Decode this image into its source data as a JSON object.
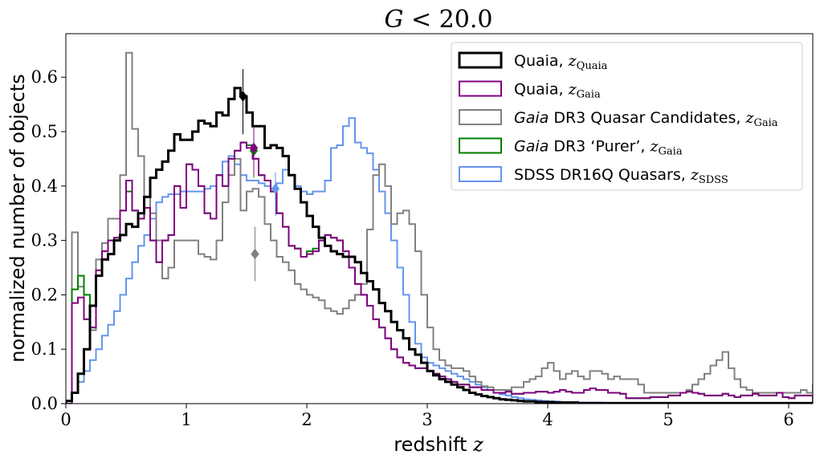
{
  "chart_data": {
    "type": "histogram-step",
    "title": "G < 20.0",
    "xlabel": "redshift z",
    "ylabel": "normalized number of objects",
    "xlim": [
      0,
      6.2
    ],
    "ylim": [
      0,
      0.68
    ],
    "xticks": [
      0,
      1,
      2,
      3,
      4,
      5,
      6
    ],
    "xtick_labels": [
      "0",
      "1",
      "2",
      "3",
      "4",
      "5",
      "6"
    ],
    "yticks": [
      0.0,
      0.1,
      0.2,
      0.3,
      0.4,
      0.5,
      0.6
    ],
    "ytick_labels": [
      "0.0",
      "0.1",
      "0.2",
      "0.3",
      "0.4",
      "0.5",
      "0.6"
    ],
    "grid": false,
    "legend_position": "top-right",
    "bin_width": 0.05,
    "series": [
      {
        "name": "Quaia, z_Quaia",
        "legend_parts": [
          "Quaia, ",
          "z",
          "Quaia"
        ],
        "color": "#000000",
        "linewidth": 3,
        "x_start": 0.0,
        "values": [
          0.005,
          0.02,
          0.055,
          0.1,
          0.18,
          0.235,
          0.265,
          0.275,
          0.3,
          0.31,
          0.33,
          0.325,
          0.35,
          0.38,
          0.415,
          0.43,
          0.445,
          0.465,
          0.495,
          0.485,
          0.485,
          0.5,
          0.52,
          0.515,
          0.51,
          0.535,
          0.53,
          0.56,
          0.58,
          0.565,
          0.535,
          0.51,
          0.51,
          0.47,
          0.475,
          0.47,
          0.455,
          0.42,
          0.395,
          0.37,
          0.345,
          0.325,
          0.305,
          0.29,
          0.28,
          0.275,
          0.27,
          0.27,
          0.26,
          0.24,
          0.225,
          0.21,
          0.185,
          0.17,
          0.15,
          0.135,
          0.12,
          0.1,
          0.09,
          0.075,
          0.06,
          0.052,
          0.045,
          0.04,
          0.035,
          0.03,
          0.025,
          0.02,
          0.017,
          0.014,
          0.012,
          0.01,
          0.008,
          0.007,
          0.006,
          0.005,
          0.004,
          0.004,
          0.003,
          0.003,
          0.003,
          0.002,
          0.002,
          0.002,
          0.002,
          0.001,
          0.001,
          0.001,
          0.001,
          0.001,
          0.001,
          0.001,
          0.001,
          0.001,
          0.001,
          0.001,
          0.001,
          0.001,
          0.001,
          0.001,
          0.001,
          0.001,
          0.001,
          0.001,
          0.001,
          0.001,
          0.001,
          0.001,
          0.001,
          0.001,
          0.001,
          0.001,
          0.001,
          0.001,
          0.001,
          0.001,
          0.001,
          0.001,
          0.001,
          0.001,
          0.001,
          0.001,
          0.001,
          0.001
        ],
        "marker": {
          "x": 1.47,
          "y": 0.565,
          "err_low": 0.07,
          "err_high": 0.05,
          "shape": "diamond"
        }
      },
      {
        "name": "Quaia, z_Gaia",
        "legend_parts": [
          "Quaia, ",
          "z",
          "Gaia"
        ],
        "color": "#800080",
        "linewidth": 2,
        "x_start": 0.0,
        "values": [
          0.0,
          0.185,
          0.195,
          0.155,
          0.14,
          0.245,
          0.28,
          0.3,
          0.305,
          0.355,
          0.41,
          0.355,
          0.34,
          0.36,
          0.3,
          0.26,
          0.3,
          0.31,
          0.4,
          0.36,
          0.44,
          0.43,
          0.4,
          0.35,
          0.34,
          0.42,
          0.4,
          0.45,
          0.465,
          0.48,
          0.47,
          0.45,
          0.42,
          0.41,
          0.39,
          0.35,
          0.325,
          0.29,
          0.285,
          0.27,
          0.275,
          0.28,
          0.3,
          0.31,
          0.305,
          0.3,
          0.28,
          0.25,
          0.22,
          0.2,
          0.18,
          0.155,
          0.14,
          0.12,
          0.1,
          0.085,
          0.075,
          0.07,
          0.065,
          0.065,
          0.06,
          0.055,
          0.05,
          0.045,
          0.04,
          0.035,
          0.035,
          0.03,
          0.03,
          0.025,
          0.025,
          0.02,
          0.02,
          0.022,
          0.018,
          0.018,
          0.02,
          0.02,
          0.022,
          0.022,
          0.02,
          0.022,
          0.025,
          0.022,
          0.02,
          0.02,
          0.025,
          0.028,
          0.025,
          0.025,
          0.02,
          0.02,
          0.018,
          0.01,
          0.01,
          0.01,
          0.01,
          0.012,
          0.012,
          0.012,
          0.015,
          0.015,
          0.02,
          0.022,
          0.02,
          0.018,
          0.015,
          0.015,
          0.015,
          0.018,
          0.015,
          0.012,
          0.015,
          0.015,
          0.018,
          0.015,
          0.015,
          0.015,
          0.02,
          0.012,
          0.01,
          0.015,
          0.015,
          0.015
        ],
        "marker": {
          "x": 1.56,
          "y": 0.47,
          "err_low": 0.05,
          "err_high": 0.04,
          "shape": "diamond"
        }
      },
      {
        "name": "Gaia DR3 Quasar Candidates, z_Gaia",
        "legend_parts": [
          "Gaia",
          " DR3 Quasar Candidates, ",
          "z",
          "Gaia"
        ],
        "color": "#808080",
        "linewidth": 2,
        "x_start": 0.0,
        "values": [
          0.0,
          0.315,
          0.215,
          0.155,
          0.135,
          0.265,
          0.295,
          0.34,
          0.34,
          0.42,
          0.645,
          0.505,
          0.455,
          0.38,
          0.35,
          0.3,
          0.23,
          0.25,
          0.3,
          0.3,
          0.3,
          0.3,
          0.275,
          0.27,
          0.265,
          0.3,
          0.37,
          0.42,
          0.45,
          0.355,
          0.39,
          0.395,
          0.38,
          0.33,
          0.3,
          0.27,
          0.26,
          0.245,
          0.22,
          0.21,
          0.2,
          0.195,
          0.19,
          0.175,
          0.17,
          0.165,
          0.175,
          0.19,
          0.2,
          0.22,
          0.32,
          0.42,
          0.44,
          0.4,
          0.33,
          0.35,
          0.355,
          0.33,
          0.28,
          0.2,
          0.14,
          0.1,
          0.08,
          0.07,
          0.065,
          0.065,
          0.06,
          0.05,
          0.04,
          0.032,
          0.03,
          0.025,
          0.025,
          0.025,
          0.03,
          0.03,
          0.04,
          0.045,
          0.05,
          0.065,
          0.075,
          0.06,
          0.045,
          0.055,
          0.06,
          0.05,
          0.045,
          0.06,
          0.06,
          0.055,
          0.045,
          0.05,
          0.045,
          0.045,
          0.045,
          0.035,
          0.02,
          0.02,
          0.02,
          0.02,
          0.02,
          0.02,
          0.02,
          0.025,
          0.035,
          0.045,
          0.055,
          0.07,
          0.08,
          0.095,
          0.065,
          0.045,
          0.03,
          0.025,
          0.02,
          0.02,
          0.02,
          0.02,
          0.02,
          0.02,
          0.02,
          0.02,
          0.025,
          0.02,
          0.035
        ],
        "marker": {
          "x": 1.57,
          "y": 0.275,
          "err_low": 0.05,
          "err_high": 0.05,
          "shape": "diamond"
        }
      },
      {
        "name": "Gaia DR3 'Purer', z_Gaia",
        "legend_parts": [
          "Gaia",
          " DR3 ‘Purer’, ",
          "z",
          "Gaia"
        ],
        "color": "#008000",
        "linewidth": 2,
        "x_start": 0.0,
        "values": [
          0.0,
          0.21,
          0.235,
          0.2,
          0.14,
          0.245,
          0.28,
          0.3,
          0.305,
          0.355,
          0.39,
          0.355,
          0.35,
          0.36,
          0.3,
          0.26,
          0.3,
          0.31,
          0.4,
          0.36,
          0.44,
          0.43,
          0.4,
          0.35,
          0.34,
          0.42,
          0.4,
          0.45,
          0.465,
          0.48,
          0.475,
          0.45,
          0.42,
          0.41,
          0.39,
          0.35,
          0.325,
          0.29,
          0.285,
          0.27,
          0.28,
          0.285,
          0.3,
          0.31,
          0.305,
          0.3,
          0.28,
          0.25,
          0.22,
          0.2,
          0.18,
          0.155,
          0.14,
          0.12,
          0.1,
          0.085,
          0.075,
          0.07,
          0.065,
          0.065,
          0.06,
          0.055,
          0.05,
          0.045,
          0.04,
          0.035,
          0.035,
          0.03,
          0.03,
          0.025,
          0.025,
          0.02,
          0.02,
          0.022,
          0.018,
          0.018,
          0.02,
          0.02,
          0.022,
          0.022,
          0.02,
          0.022,
          0.025,
          0.022,
          0.02,
          0.02,
          0.025,
          0.028,
          0.025,
          0.025,
          0.02,
          0.02,
          0.018,
          0.01,
          0.01,
          0.01,
          0.01,
          0.012,
          0.012,
          0.012,
          0.015,
          0.015,
          0.02,
          0.022,
          0.02,
          0.018,
          0.015,
          0.015,
          0.015,
          0.018,
          0.015,
          0.012,
          0.015,
          0.015,
          0.018,
          0.015,
          0.015,
          0.015,
          0.02,
          0.012,
          0.01,
          0.015,
          0.015,
          0.015
        ],
        "marker": {
          "x": 1.56,
          "y": 0.465,
          "err_low": 0.05,
          "err_high": 0.04,
          "shape": "diamond"
        }
      },
      {
        "name": "SDSS DR16Q Quasars, z_SDSS",
        "legend_parts": [
          "SDSS DR16Q Quasars, ",
          "z",
          "SDSS"
        ],
        "color": "#6495ED",
        "linewidth": 2,
        "x_start": 0.0,
        "values": [
          0.0,
          0.02,
          0.04,
          0.06,
          0.08,
          0.1,
          0.125,
          0.145,
          0.17,
          0.2,
          0.23,
          0.26,
          0.29,
          0.31,
          0.34,
          0.37,
          0.38,
          0.385,
          0.385,
          0.39,
          0.39,
          0.39,
          0.39,
          0.395,
          0.4,
          0.42,
          0.445,
          0.455,
          0.44,
          0.42,
          0.41,
          0.41,
          0.405,
          0.4,
          0.395,
          0.405,
          0.43,
          0.42,
          0.4,
          0.39,
          0.385,
          0.39,
          0.39,
          0.41,
          0.47,
          0.475,
          0.51,
          0.525,
          0.48,
          0.47,
          0.46,
          0.43,
          0.39,
          0.35,
          0.3,
          0.25,
          0.2,
          0.15,
          0.11,
          0.085,
          0.075,
          0.07,
          0.065,
          0.06,
          0.055,
          0.05,
          0.045,
          0.04,
          0.035,
          0.03,
          0.025,
          0.02,
          0.017,
          0.015,
          0.012,
          0.01,
          0.008,
          0.007,
          0.006,
          0.005,
          0.004,
          0.004,
          0.003,
          0.003,
          0.003,
          0.002,
          0.002,
          0.002,
          0.002,
          0.001,
          0.0,
          0.0,
          0.0,
          0.0,
          0.0,
          0.0,
          0.0,
          0.0,
          0.0,
          0.0,
          0.0,
          0.0,
          0.0,
          0.0,
          0.0,
          0.0,
          0.0,
          0.0,
          0.0,
          0.0,
          0.0,
          0.0,
          0.0,
          0.0,
          0.0,
          0.0,
          0.0,
          0.0,
          0.0,
          0.0,
          0.0,
          0.0,
          0.0,
          0.0,
          0.0
        ],
        "marker": {
          "x": 1.74,
          "y": 0.395,
          "err_low": 0.05,
          "err_high": 0.03,
          "shape": "diamond"
        }
      }
    ]
  }
}
